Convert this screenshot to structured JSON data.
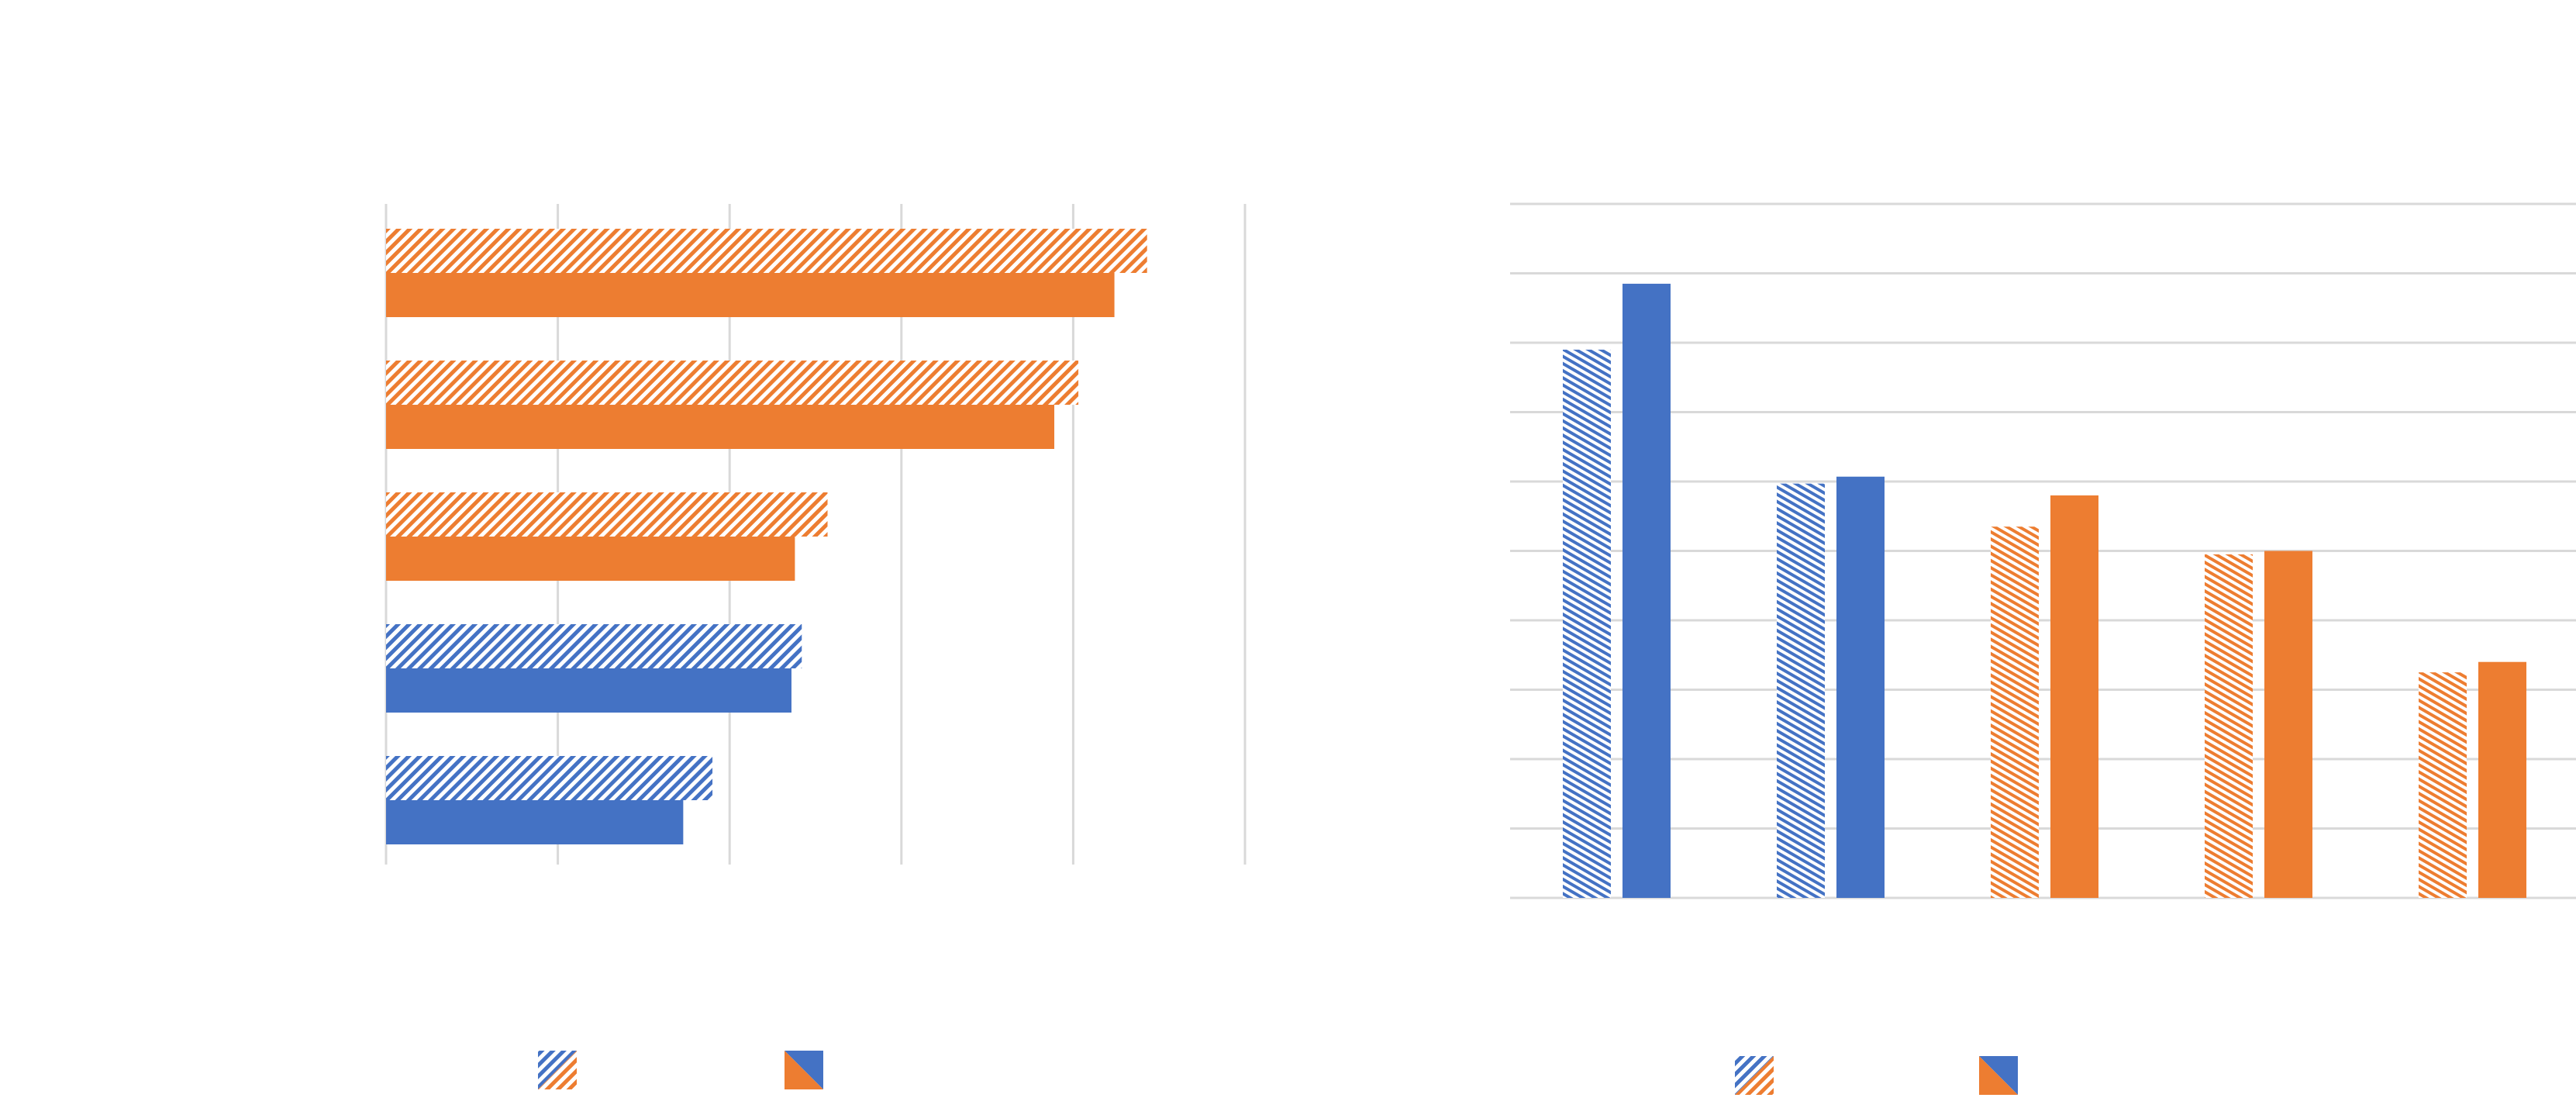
{
  "colors": {
    "blue": "#4472C4",
    "orange": "#ED7D31",
    "gridline": "#D9D9D9",
    "background": "#FFFFFF"
  },
  "chart_data": [
    {
      "type": "bar",
      "orientation": "horizontal",
      "title": "",
      "xlabel": "",
      "ylabel": "",
      "xlim": [
        0,
        5
      ],
      "grid": true,
      "legend_placement": "bottom",
      "rows": [
        {
          "hatched": 1.9,
          "solid": 1.73,
          "color": "blue"
        },
        {
          "hatched": 2.42,
          "solid": 2.36,
          "color": "blue"
        },
        {
          "hatched": 2.57,
          "solid": 2.38,
          "color": "orange"
        },
        {
          "hatched": 4.03,
          "solid": 3.89,
          "color": "orange"
        },
        {
          "hatched": 4.43,
          "solid": 4.24,
          "color": "orange"
        }
      ],
      "legend": [
        {
          "swatch": "hatched-mixed",
          "name": ""
        },
        {
          "swatch": "solid-mixed",
          "name": ""
        }
      ]
    },
    {
      "type": "bar",
      "orientation": "vertical",
      "title": "",
      "xlabel": "",
      "ylabel": "",
      "ylim": [
        0,
        10
      ],
      "grid": true,
      "legend_placement": "bottom",
      "groups": [
        {
          "hatched": 7.9,
          "solid": 8.85,
          "color": "blue"
        },
        {
          "hatched": 5.97,
          "solid": 6.07,
          "color": "blue"
        },
        {
          "hatched": 5.35,
          "solid": 5.8,
          "color": "orange"
        },
        {
          "hatched": 4.95,
          "solid": 5.0,
          "color": "orange"
        },
        {
          "hatched": 3.25,
          "solid": 3.4,
          "color": "orange"
        }
      ],
      "legend": [
        {
          "swatch": "hatched-mixed",
          "name": ""
        },
        {
          "swatch": "solid-mixed",
          "name": ""
        }
      ]
    }
  ]
}
